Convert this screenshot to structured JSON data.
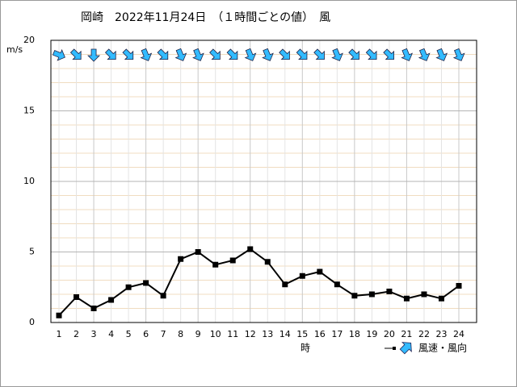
{
  "chart_data": {
    "type": "line",
    "title": "岡崎　2022年11月24日　（１時間ごとの値）　風",
    "y_label": "m/s",
    "x_label": "時",
    "legend": "風速・風向",
    "categories": [
      "1",
      "2",
      "3",
      "4",
      "5",
      "6",
      "7",
      "8",
      "9",
      "10",
      "11",
      "12",
      "13",
      "14",
      "15",
      "16",
      "17",
      "18",
      "19",
      "20",
      "21",
      "22",
      "23",
      "24"
    ],
    "values": [
      0.5,
      1.8,
      1.0,
      1.6,
      2.5,
      2.8,
      1.9,
      4.5,
      5.0,
      4.1,
      4.4,
      5.2,
      4.3,
      2.7,
      3.3,
      3.6,
      2.7,
      1.9,
      2.0,
      2.2,
      1.7,
      2.0,
      1.7,
      2.6
    ],
    "directions": [
      292.5,
      315,
      0,
      315,
      315,
      337.5,
      315,
      337.5,
      337.5,
      315,
      315,
      337.5,
      337.5,
      315,
      315,
      315,
      337.5,
      315,
      315,
      315,
      337.5,
      337.5,
      337.5,
      337.5
    ],
    "color": "#000000",
    "arrow_color": "#33bbff",
    "ylim": [
      0,
      20
    ],
    "yticks": [
      0,
      5,
      10,
      15,
      20
    ],
    "y_minor_ticks": [
      1,
      2,
      3,
      4,
      6,
      7,
      8,
      9,
      11,
      12,
      13,
      14,
      16,
      17,
      18,
      19
    ],
    "grid": true
  }
}
